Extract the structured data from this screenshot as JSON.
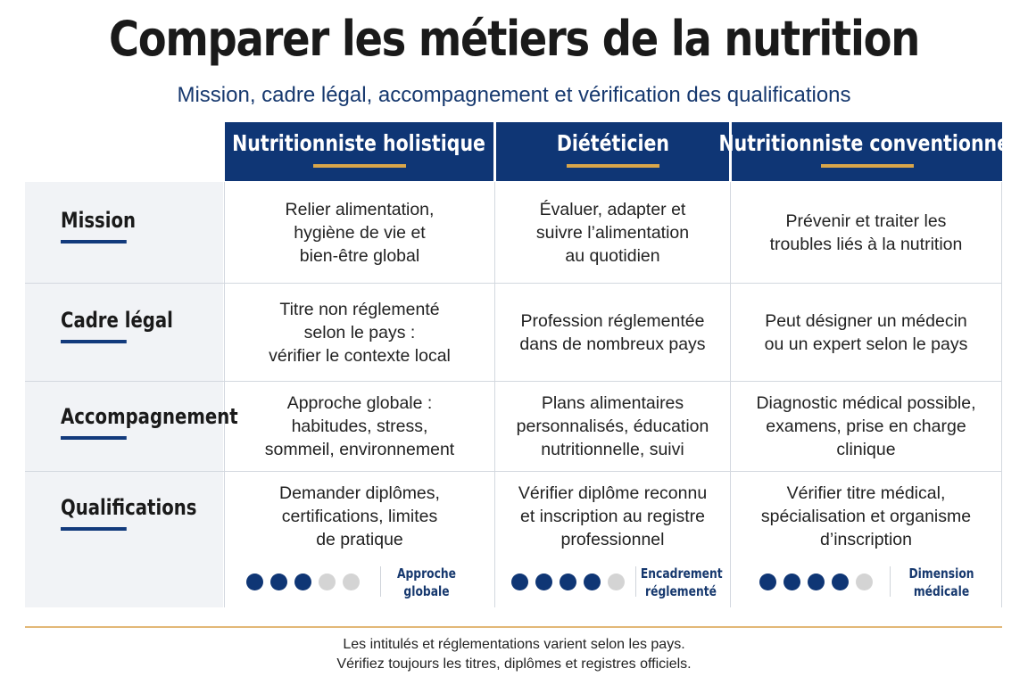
{
  "title": "Comparer les métiers de la nutrition",
  "subtitle": "Mission, cadre légal, accompagnement et vérification des qualifications",
  "columns": [
    "Nutritionniste holistique",
    "Diététicien",
    "Nutritionniste conventionnel"
  ],
  "rows": [
    {
      "label": "Mission",
      "cells": [
        "Relier alimentation,\nhygiène de vie et\nbien-être global",
        "Évaluer, adapter et\nsuivre l’alimentation\nau quotidien",
        "Prévenir et traiter les\ntroubles liés à la nutrition"
      ]
    },
    {
      "label": "Cadre légal",
      "cells": [
        "Titre non réglementé\nselon le pays :\nvérifier le contexte local",
        "Profession réglementée\ndans de nombreux pays",
        "Peut désigner un médecin\nou un expert selon le pays"
      ]
    },
    {
      "label": "Accompagnement",
      "cells": [
        "Approche globale :\nhabitudes, stress,\nsommeil, environnement",
        "Plans alimentaires\npersonnalisés, éducation\nnutritionnelle, suivi",
        "Diagnostic médical possible,\nexamens, prise en charge\nclinique"
      ]
    },
    {
      "label": "Qualifications",
      "cells": [
        "Demander diplômes,\ncertifications, limites\nde pratique",
        "Vérifier diplôme reconnu\net inscription au registre\nprofessionnel",
        "Vérifier titre médical,\nspécialisation et organisme\nd’inscription"
      ]
    }
  ],
  "ratings": [
    {
      "filled": 3,
      "total": 5,
      "label": "Approche\nglobale"
    },
    {
      "filled": 4,
      "total": 5,
      "label": "Encadrement\nréglementé"
    },
    {
      "filled": 4,
      "total": 5,
      "label": "Dimension\nmédicale"
    }
  ],
  "footer": [
    "Les intitulés et réglementations varient selon les pays.",
    "Vérifiez toujours les titres, diplômes et registres officiels."
  ],
  "colors": {
    "header_bg": "#0f3675",
    "accent_gold": "#d9a64a",
    "dot_filled": "#0f3675",
    "dot_empty": "#d4d4d4"
  }
}
